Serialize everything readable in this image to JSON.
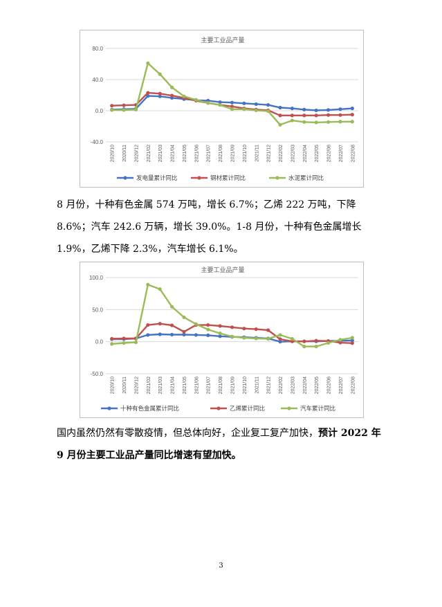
{
  "charts": [
    {
      "chart_data": {
        "type": "line",
        "title": "主要工业品产量",
        "categories": [
          "2020/10",
          "2020/11",
          "2020/12",
          "2021/02",
          "2021/03",
          "2021/04",
          "2021/05",
          "2021/06",
          "2021/07",
          "2021/08",
          "2021/09",
          "2021/10",
          "2021/11",
          "2021/12",
          "2022/02",
          "2022/03",
          "2022/04",
          "2022/05",
          "2022/06",
          "2022/07",
          "2022/08"
        ],
        "yticks": [
          "80.0",
          "40.0",
          "0.0",
          "-40.0"
        ],
        "ylim": [
          -40,
          80
        ],
        "series": [
          {
            "name": "发电量累计同比",
            "color": "#4472c4",
            "values": [
              1.5,
              2.0,
              2.5,
              19.0,
              18.5,
              16.5,
              15.0,
              13.5,
              13.0,
              11.0,
              10.5,
              9.5,
              8.5,
              7.5,
              4.0,
              3.0,
              1.5,
              0.5,
              1.0,
              2.0,
              3.0
            ]
          },
          {
            "name": "钢材累计同比",
            "color": "#c0504d",
            "values": [
              6.5,
              7.0,
              7.5,
              23.0,
              22.0,
              19.5,
              16.5,
              13.0,
              10.0,
              7.5,
              5.5,
              3.0,
              1.5,
              0.5,
              -6.0,
              -6.0,
              -6.0,
              -6.0,
              -5.5,
              -5.5,
              -5.0
            ]
          },
          {
            "name": "水泥累计同比",
            "color": "#9bbb59",
            "values": [
              1.0,
              1.0,
              1.5,
              61.0,
              47.0,
              30.0,
              18.5,
              14.0,
              10.0,
              7.5,
              2.0,
              2.0,
              0.5,
              -0.5,
              -18.0,
              -12.5,
              -14.5,
              -15.0,
              -14.5,
              -14.0,
              -14.0
            ]
          }
        ]
      }
    },
    {
      "chart_data": {
        "type": "line",
        "title": "主要工业品产量",
        "categories": [
          "2020/10",
          "2020/11",
          "2020/12",
          "2021/02",
          "2021/03",
          "2021/04",
          "2021/05",
          "2021/06",
          "2021/07",
          "2021/08",
          "2021/09",
          "2021/10",
          "2021/11",
          "2021/12",
          "2022/02",
          "2022/03",
          "2022/04",
          "2022/05",
          "2022/06",
          "2022/07",
          "2022/08"
        ],
        "yticks": [
          "100.0",
          "50.0",
          "0.0",
          "-50.0"
        ],
        "ylim": [
          -50,
          100
        ],
        "series": [
          {
            "name": "十种有色金属累计同比",
            "color": "#4472c4",
            "values": [
              4.0,
              4.0,
              5.0,
              10.5,
              11.5,
              11.0,
              11.0,
              10.5,
              10.0,
              8.5,
              7.5,
              7.0,
              6.0,
              5.0,
              0.0,
              0.5,
              0.5,
              0.5,
              1.0,
              1.5,
              1.9
            ]
          },
          {
            "name": "乙烯累计同比",
            "color": "#c0504d",
            "values": [
              4.5,
              5.0,
              5.0,
              26.0,
              28.0,
              25.5,
              15.5,
              26.0,
              26.0,
              24.5,
              22.5,
              20.5,
              19.5,
              18.0,
              4.0,
              0.5,
              0.5,
              1.5,
              1.0,
              -1.5,
              -2.3
            ]
          },
          {
            "name": "汽车累计同比",
            "color": "#9bbb59",
            "values": [
              -3.5,
              -2.0,
              -1.0,
              89.0,
              82.0,
              54.5,
              38.0,
              27.5,
              19.0,
              13.0,
              8.0,
              6.0,
              5.0,
              4.5,
              10.5,
              4.5,
              -7.5,
              -7.5,
              -2.0,
              3.0,
              6.1
            ]
          }
        ]
      }
    }
  ],
  "paragraph1": "8 月份，十种有色金属 574 万吨，增长 6.7%；乙烯 222 万吨，下降 8.6%；汽车 242.6 万辆，增长 39.0%。1-8 月份，十种有色金属增长 1.9%，乙烯下降 2.3%，汽车增长 6.1%。",
  "paragraph2_normal": "国内虽然仍然有零散疫情，但总体向好，企业复工复产加快，",
  "paragraph2_bold": "预计 2022 年 9 月份主要工业品产量同比增速有望加快。",
  "page_number": "3"
}
